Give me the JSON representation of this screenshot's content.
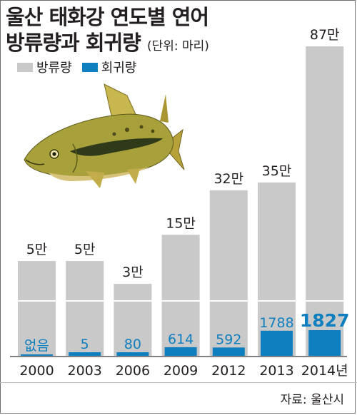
{
  "title": {
    "line1": "울산 태화강 연도별 연어",
    "line2": "방류량과 회귀량",
    "unit": "(단위: 마리)"
  },
  "legend": [
    {
      "label": "방류량",
      "color": "#c9c9c9",
      "icon": "gray-square-icon"
    },
    {
      "label": "회귀량",
      "color": "#0f7fbf",
      "icon": "blue-square-icon"
    }
  ],
  "source": "자료: 울산시",
  "colors": {
    "released": "#c9c9c9",
    "returned": "#0f7fbf",
    "separator": "#ffffff"
  },
  "chart_data": {
    "type": "bar",
    "categories": [
      "2000",
      "2003",
      "2006",
      "2009",
      "2012",
      "2013",
      "2014년"
    ],
    "series": [
      {
        "name": "방류량",
        "values": [
          50000,
          50000,
          30000,
          150000,
          320000,
          350000,
          870000
        ],
        "labels": [
          "5만",
          "5만",
          "3만",
          "15만",
          "32만",
          "35만",
          "87만"
        ]
      },
      {
        "name": "회귀량",
        "values": [
          0,
          5,
          80,
          614,
          592,
          1788,
          1827
        ],
        "labels": [
          "없음",
          "5",
          "80",
          "614",
          "592",
          "1788",
          "1827"
        ]
      }
    ]
  }
}
